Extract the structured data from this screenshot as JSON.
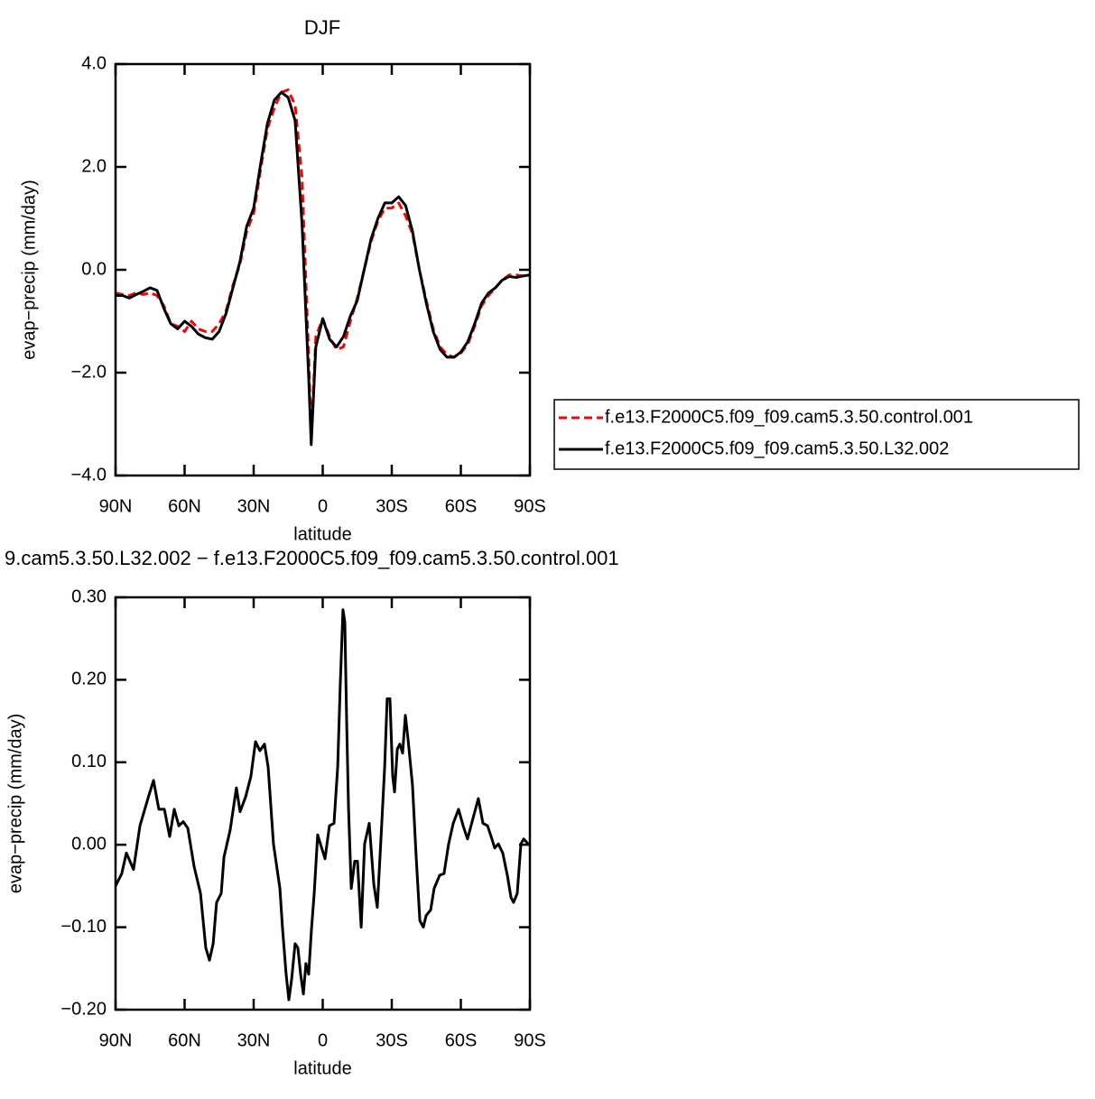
{
  "chart_data": [
    {
      "type": "line",
      "title": "DJF",
      "xlabel": "latitude",
      "ylabel": "evap−precip (mm/day)",
      "x": [
        90,
        87,
        84,
        81,
        78,
        75,
        72,
        69,
        66,
        63,
        60,
        57,
        54,
        51,
        48,
        45,
        42,
        39,
        36,
        33,
        30,
        27,
        24,
        21,
        18,
        15,
        12,
        9,
        6,
        5,
        3,
        0,
        -3,
        -6,
        -9,
        -12,
        -15,
        -18,
        -21,
        -24,
        -27,
        -30,
        -33,
        -36,
        -39,
        -42,
        -45,
        -48,
        -51,
        -54,
        -57,
        -60,
        -63,
        -66,
        -69,
        -72,
        -75,
        -78,
        -81,
        -84,
        -87,
        -90
      ],
      "xlim": [
        90,
        -90
      ],
      "xticks": [
        {
          "value": 90,
          "label": "90N"
        },
        {
          "value": 60,
          "label": "60N"
        },
        {
          "value": 30,
          "label": "30N"
        },
        0,
        {
          "value": -30,
          "label": "30S"
        },
        {
          "value": -60,
          "label": "60S"
        },
        {
          "value": -90,
          "label": "90S"
        }
      ],
      "ylim": [
        -4,
        4
      ],
      "yticks": [
        {
          "value": -4,
          "label": "−4.0"
        },
        {
          "value": -2,
          "label": "−2.0"
        },
        {
          "value": 0,
          "label": "0.0"
        },
        {
          "value": 2,
          "label": "2.0"
        },
        {
          "value": 4,
          "label": "4.0"
        }
      ],
      "legend": "outside-lower-right",
      "series": [
        {
          "name": "f.e13.F2000C5.f09_f09.cam5.3.50.control.001",
          "color": "#ff0000",
          "dash": true,
          "values": [
            -0.45,
            -0.48,
            -0.5,
            -0.45,
            -0.48,
            -0.45,
            -0.5,
            -0.7,
            -1.05,
            -1.1,
            -1.2,
            -1.0,
            -1.15,
            -1.2,
            -1.2,
            -1.05,
            -0.8,
            -0.3,
            0.1,
            0.75,
            1.1,
            1.95,
            2.75,
            3.15,
            3.45,
            3.5,
            3.2,
            1.8,
            -1.8,
            -3.3,
            -1.3,
            -0.95,
            -1.3,
            -1.55,
            -1.5,
            -1.0,
            -0.55,
            0.0,
            0.55,
            0.95,
            1.2,
            1.2,
            1.3,
            1.05,
            0.7,
            0.0,
            -0.6,
            -1.15,
            -1.5,
            -1.65,
            -1.7,
            -1.62,
            -1.45,
            -1.1,
            -0.7,
            -0.5,
            -0.35,
            -0.2,
            -0.1,
            -0.1,
            -0.12,
            -0.1
          ]
        },
        {
          "name": "f.e13.F2000C5.f09_f09.cam5.3.50.L32.002",
          "color": "#000000",
          "dash": false,
          "values": [
            -0.5,
            -0.5,
            -0.55,
            -0.48,
            -0.42,
            -0.35,
            -0.4,
            -0.75,
            -1.05,
            -1.15,
            -1.0,
            -1.1,
            -1.25,
            -1.32,
            -1.35,
            -1.2,
            -0.85,
            -0.35,
            0.15,
            0.85,
            1.2,
            2.05,
            2.85,
            3.3,
            3.45,
            3.35,
            2.9,
            0.9,
            -2.2,
            -3.4,
            -1.5,
            -0.95,
            -1.35,
            -1.5,
            -1.3,
            -0.9,
            -0.6,
            0.0,
            0.6,
            1.0,
            1.3,
            1.3,
            1.42,
            1.25,
            0.75,
            0.0,
            -0.65,
            -1.2,
            -1.55,
            -1.7,
            -1.7,
            -1.6,
            -1.4,
            -1.05,
            -0.65,
            -0.45,
            -0.35,
            -0.2,
            -0.13,
            -0.15,
            -0.12,
            -0.1
          ]
        }
      ]
    },
    {
      "type": "line",
      "title": "9.cam5.3.50.L32.002 − f.e13.F2000C5.f09_f09.cam5.3.50.control.001",
      "xlabel": "latitude",
      "ylabel": "evap−precip (mm/day)",
      "x": [
        90,
        87.3,
        85.3,
        82.2,
        79.4,
        75.5,
        73.5,
        71.2,
        68.8,
        66.5,
        64.5,
        62.5,
        60.6,
        58.6,
        55.9,
        53.1,
        50.8,
        49.2,
        47.6,
        46.1,
        44.1,
        42.9,
        40.2,
        37.5,
        35.9,
        33.5,
        31.2,
        29.2,
        27.3,
        25.3,
        23.7,
        21.4,
        18.6,
        17.5,
        15.9,
        14.7,
        13.5,
        12.0,
        10.8,
        9.6,
        8.4,
        7.3,
        6.1,
        4.9,
        3.7,
        2.2,
        1.0,
        -1.0,
        -2.9,
        -4.9,
        -6.5,
        -7.6,
        -8.8,
        -9.6,
        -10.4,
        -11.2,
        -12.4,
        -13.9,
        -15.1,
        -16.7,
        -18.2,
        -20.2,
        -22.2,
        -23.7,
        -25.3,
        -26.9,
        -28.0,
        -29.2,
        -30.4,
        -31.2,
        -32.4,
        -33.5,
        -34.7,
        -35.9,
        -37.1,
        -39.0,
        -40.6,
        -42.2,
        -43.7,
        -44.9,
        -46.9,
        -48.4,
        -50.8,
        -52.7,
        -54.7,
        -56.7,
        -59.0,
        -61.0,
        -62.9,
        -64.9,
        -67.6,
        -69.6,
        -71.6,
        -73.5,
        -74.7,
        -76.3,
        -78.2,
        -80.2,
        -81.8,
        -82.9,
        -84.5,
        -86.1,
        -87.3,
        -89.2
      ],
      "xlim": [
        90,
        -90
      ],
      "xticks": [
        {
          "value": 90,
          "label": "90N"
        },
        {
          "value": 60,
          "label": "60N"
        },
        {
          "value": 30,
          "label": "30N"
        },
        0,
        {
          "value": -30,
          "label": "30S"
        },
        {
          "value": -60,
          "label": "60S"
        },
        {
          "value": -90,
          "label": "90S"
        }
      ],
      "ylim": [
        -0.2,
        0.3
      ],
      "yticks": [
        {
          "value": -0.2,
          "label": "−0.20"
        },
        {
          "value": -0.1,
          "label": "−0.10"
        },
        {
          "value": 0,
          "label": "0.00"
        },
        {
          "value": 0.1,
          "label": "0.10"
        },
        {
          "value": 0.2,
          "label": "0.20"
        },
        {
          "value": 0.3,
          "label": "0.30"
        }
      ],
      "series": [
        {
          "color": "#000000",
          "dash": false,
          "values": [
            -0.05,
            -0.035,
            -0.01,
            -0.03,
            0.023,
            0.06,
            0.078,
            0.043,
            0.043,
            0.01,
            0.043,
            0.023,
            0.028,
            0.02,
            -0.026,
            -0.059,
            -0.125,
            -0.14,
            -0.12,
            -0.07,
            -0.059,
            -0.015,
            0.018,
            0.069,
            0.04,
            0.058,
            0.083,
            0.125,
            0.114,
            0.122,
            0.094,
            0.001,
            -0.053,
            -0.1,
            -0.157,
            -0.188,
            -0.163,
            -0.12,
            -0.125,
            -0.157,
            -0.181,
            -0.144,
            -0.157,
            -0.103,
            -0.059,
            0.012,
            0.001,
            -0.017,
            0.023,
            0.026,
            0.094,
            0.193,
            0.285,
            0.27,
            0.149,
            0.045,
            -0.053,
            -0.02,
            -0.02,
            -0.1,
            0.001,
            0.026,
            -0.048,
            -0.076,
            0.007,
            0.094,
            0.177,
            0.177,
            0.083,
            0.064,
            0.116,
            0.122,
            0.111,
            0.157,
            0.127,
            0.072,
            -0.015,
            -0.092,
            -0.1,
            -0.086,
            -0.079,
            -0.053,
            -0.037,
            -0.035,
            0.001,
            0.026,
            0.043,
            0.023,
            0.007,
            0.028,
            0.056,
            0.026,
            0.023,
            0.007,
            -0.004,
            0.001,
            -0.01,
            -0.037,
            -0.064,
            -0.07,
            -0.059,
            0.001,
            0.007,
            0.001
          ]
        }
      ]
    }
  ]
}
